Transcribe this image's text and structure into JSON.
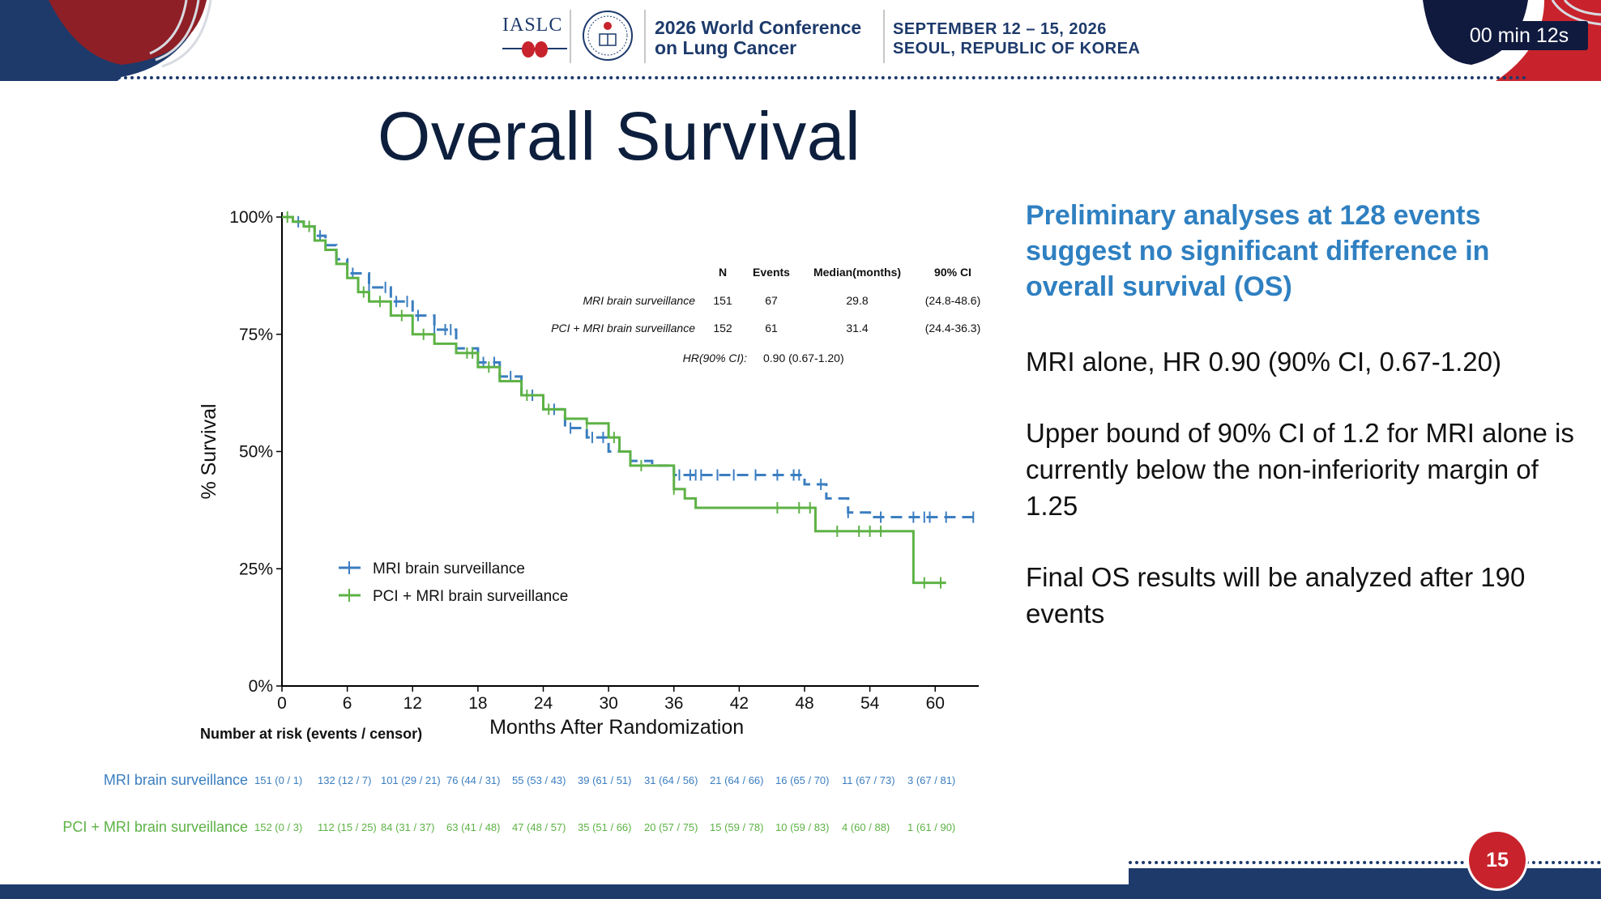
{
  "header": {
    "org_logo_text": "IASLC",
    "conference_title_line1": "2026 World Conference",
    "conference_title_line2": "on Lung Cancer",
    "date_line1": "SEPTEMBER 12 – 15, 2026",
    "date_line2": "SEOUL, REPUBLIC OF KOREA",
    "timer": "00 min 12s"
  },
  "slide": {
    "title": "Overall Survival",
    "page_number": "15"
  },
  "findings": {
    "heading": "Preliminary analyses at 128 events suggest no significant difference in overall survival (OS)",
    "points": [
      "MRI alone, HR 0.90 (90% CI, 0.67-1.20)",
      "Upper bound of 90% CI of 1.2 for MRI alone is currently below the non-inferiority margin of 1.25",
      "Final OS results will be analyzed after 190 events"
    ]
  },
  "colors": {
    "mri": "#3b7ec0",
    "pci": "#5db245",
    "navy": "#1d3a6b",
    "red": "#c8232c",
    "heading_blue": "#2f80c1"
  },
  "chart_data": {
    "type": "line",
    "subtype": "kaplan-meier",
    "title": "",
    "xlabel": "Months After Randomization",
    "ylabel": "% Survival",
    "xlim": [
      0,
      64
    ],
    "ylim": [
      0,
      100
    ],
    "xticks": [
      0,
      6,
      12,
      18,
      24,
      30,
      36,
      42,
      48,
      54,
      60
    ],
    "yticks": [
      0,
      25,
      50,
      75,
      100
    ],
    "ytick_labels": [
      "0%",
      "25%",
      "50%",
      "75%",
      "100%"
    ],
    "grid": false,
    "legend_position": "bottom-left",
    "series": [
      {
        "name": "MRI brain surveillance",
        "style": "dashed",
        "color": "#3b7ec0",
        "x": [
          0,
          1,
          2,
          3,
          4,
          5,
          6,
          8,
          10,
          12,
          14,
          16,
          18,
          20,
          22,
          24,
          26,
          28,
          30,
          32,
          34,
          36,
          38,
          40,
          42,
          44,
          46,
          47,
          48,
          50,
          52,
          54,
          56,
          58,
          60,
          64
        ],
        "y": [
          100,
          99,
          98,
          96,
          94,
          91,
          88,
          85,
          82,
          79,
          76,
          72,
          69,
          66,
          62,
          59,
          55,
          53,
          50,
          48,
          47,
          45,
          45,
          45,
          45,
          45,
          45,
          45,
          43,
          40,
          37,
          36,
          36,
          36,
          36,
          36
        ],
        "censor_x": [
          1.5,
          3.5,
          6.5,
          8,
          9.5,
          10.5,
          11.5,
          12.5,
          14,
          15,
          15.5,
          18.5,
          19.5,
          21,
          23,
          25,
          26.5,
          28.5,
          29.5,
          36.5,
          37.5,
          38,
          38.5,
          40,
          41.5,
          43.5,
          45.5,
          47,
          47.5,
          49.5,
          52,
          55,
          58,
          59,
          59.5,
          61,
          63.5
        ]
      },
      {
        "name": "PCI + MRI brain surveillance",
        "style": "solid",
        "color": "#5db245",
        "x": [
          0,
          1,
          2,
          3,
          4,
          5,
          6,
          7,
          8,
          10,
          12,
          14,
          16,
          18,
          20,
          22,
          24,
          26,
          28,
          30,
          31,
          32,
          34,
          36,
          37,
          38,
          40,
          42,
          44,
          46,
          48,
          49,
          50,
          52,
          54,
          56,
          57.5,
          58,
          60,
          61
        ],
        "y": [
          100,
          99,
          98,
          95,
          93,
          90,
          87,
          84,
          82,
          79,
          75,
          73,
          71,
          68,
          65,
          62,
          59,
          57,
          56,
          53,
          50,
          47,
          47,
          42,
          40,
          38,
          38,
          38,
          38,
          38,
          38,
          33,
          33,
          33,
          33,
          33,
          33,
          22,
          22,
          22
        ],
        "censor_x": [
          0.5,
          2.5,
          7.5,
          9,
          11,
          13,
          17,
          17.5,
          19,
          22.5,
          24.5,
          28,
          30.5,
          33,
          36,
          45.5,
          47.5,
          48.5,
          51,
          53,
          54,
          55,
          59,
          60.5
        ]
      }
    ],
    "table": {
      "columns": [
        "",
        "N",
        "Events",
        "Median(months)",
        "90% CI"
      ],
      "rows": [
        [
          "MRI brain surveillance",
          "151",
          "67",
          "29.8",
          "(24.8-48.6)"
        ],
        [
          "PCI + MRI brain surveillance",
          "152",
          "61",
          "31.4",
          "(24.4-36.3)"
        ]
      ],
      "hr_label": "HR(90% CI):",
      "hr_value": "0.90 (0.67-1.20)"
    },
    "risk_table": {
      "title": "Number at risk (events / censor)",
      "x": [
        0,
        6,
        12,
        18,
        24,
        30,
        36,
        42,
        48,
        54,
        60
      ],
      "rows": [
        {
          "label": "MRI brain surveillance",
          "values": [
            "151 (0 / 1)",
            "132 (12 / 7)",
            "101 (29 / 21)",
            "76 (44 / 31)",
            "55 (53 / 43)",
            "39 (61 / 51)",
            "31 (64 / 56)",
            "21 (64 / 66)",
            "16 (65 / 70)",
            "11 (67 / 73)",
            "3 (67 / 81)"
          ]
        },
        {
          "label": "PCI + MRI brain surveillance",
          "values": [
            "152 (0 / 3)",
            "112 (15 / 25)",
            "84 (31 / 37)",
            "63 (41 / 48)",
            "47 (48 / 57)",
            "35 (51 / 66)",
            "20 (57 / 75)",
            "15 (59 / 78)",
            "10 (59 / 83)",
            "4 (60 / 88)",
            "1 (61 / 90)"
          ]
        }
      ]
    }
  }
}
